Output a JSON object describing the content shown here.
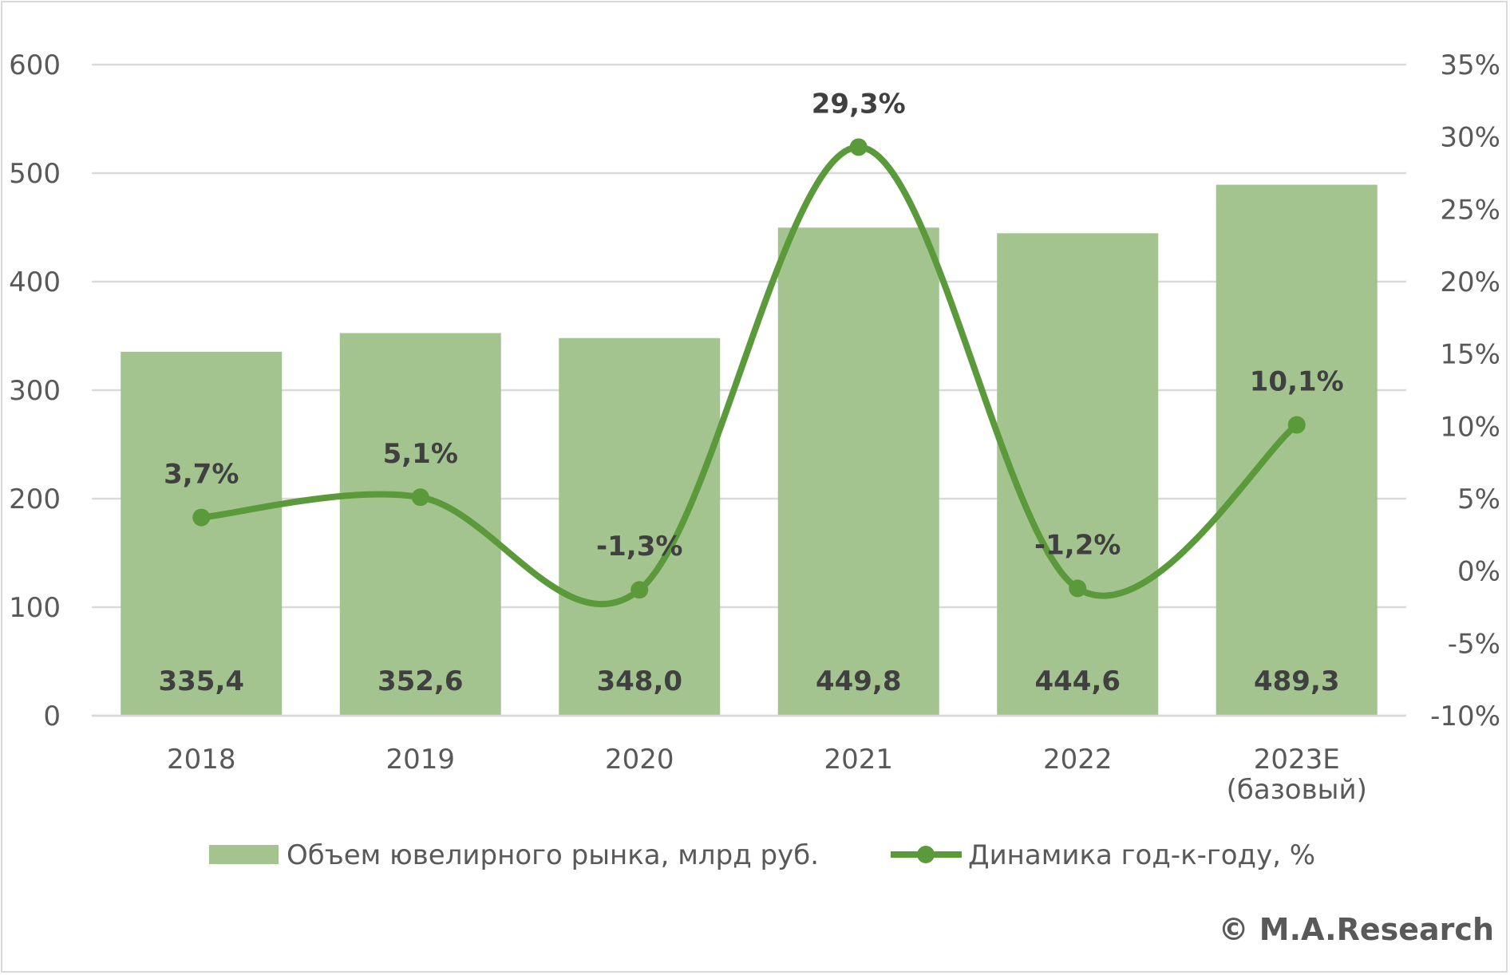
{
  "chart_data": {
    "type": "bar",
    "categories": [
      [
        "2018"
      ],
      [
        "2019"
      ],
      [
        "2020"
      ],
      [
        "2021"
      ],
      [
        "2022"
      ],
      [
        "2023E",
        "(базовый)"
      ]
    ],
    "series": [
      {
        "name": "Объем ювелирного рынка, млрд руб.",
        "kind": "bar",
        "axis": "left",
        "values": [
          335.4,
          352.6,
          348.0,
          449.8,
          444.6,
          489.3
        ],
        "labels": [
          "335,4",
          "352,6",
          "348,0",
          "449,8",
          "444,6",
          "489,3"
        ],
        "color": "#a3c48f"
      },
      {
        "name": "Динамика год-к-году, %",
        "kind": "line-smoothed-markers",
        "axis": "right",
        "values": [
          3.7,
          5.1,
          -1.3,
          29.3,
          -1.2,
          10.1
        ],
        "labels": [
          "3,7%",
          "5,1%",
          "-1,3%",
          "29,3%",
          "-1,2%",
          "10,1%"
        ],
        "color": "#5a9a3a"
      }
    ],
    "y_left": {
      "min": 0,
      "max": 600,
      "ticks": [
        0,
        100,
        200,
        300,
        400,
        500,
        600
      ],
      "tick_labels": [
        "0",
        "100",
        "200",
        "300",
        "400",
        "500",
        "600"
      ]
    },
    "y_right": {
      "min": -10,
      "max": 35,
      "ticks": [
        -10,
        -5,
        0,
        5,
        10,
        15,
        20,
        25,
        30,
        35
      ],
      "tick_labels": [
        "-10%",
        "-5%",
        "0%",
        "5%",
        "10%",
        "15%",
        "20%",
        "25%",
        "30%",
        "35%"
      ]
    },
    "grid": true,
    "legend": "bottom",
    "credit": "© M.A.Research",
    "colors": {
      "grid": "#d9d9d9",
      "text": "#595959",
      "label": "#404040"
    }
  }
}
